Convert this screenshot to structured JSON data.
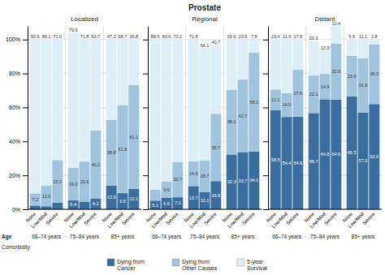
{
  "title": "Prostate",
  "chart_data": [
    {
      "type": "bar",
      "title": "Localized",
      "stacked": true,
      "data_labels": true,
      "grid": true,
      "categories": [
        "None",
        "Low/Mod",
        "Severe",
        "None",
        "Low/Mod",
        "Severe",
        "None",
        "Low/Mod",
        "Severe"
      ],
      "groups": [
        "66–74 years",
        "75–84 years",
        "85+ years"
      ],
      "annotations": [
        "Age",
        "Comorbidity"
      ],
      "ylim": [
        0,
        108
      ],
      "yticks": [
        {
          "value": 0,
          "label": "0%"
        },
        {
          "value": 20,
          "label": "20%"
        },
        {
          "value": 40,
          "label": "40%"
        },
        {
          "value": 60,
          "label": "60%"
        },
        {
          "value": 80,
          "label": "80%"
        },
        {
          "value": 100,
          "label": "100%"
        }
      ],
      "series": [
        {
          "name": "Dying from\nCancer",
          "color": "#3a6e9f",
          "values": [
            2.2,
            1.8,
            3.8,
            5.4,
            4.5,
            6.2,
            13.9,
            9.5,
            12.1
          ],
          "value_labels": [
            null,
            null,
            null,
            "5.4",
            null,
            "6.2",
            "13.9",
            "9.5",
            "12.1"
          ]
        },
        {
          "name": "Dying from\nOther Causes",
          "color": "#a0c4de",
          "values": [
            7.2,
            12.0,
            25.2,
            19.0,
            23.6,
            40.2,
            38.8,
            51.8,
            61.1
          ],
          "value_labels": [
            "7.2",
            "12.0",
            "25.2",
            "19.0",
            "23.6",
            "40.2",
            "38.8",
            "51.8",
            "61.1"
          ]
        },
        {
          "name": "5-year\nSurvival",
          "color": "#ddeef7",
          "values": [
            90.5,
            86.1,
            71.0,
            79.6,
            71.8,
            53.7,
            47.3,
            38.7,
            26.8
          ],
          "value_labels": [
            "90.5",
            "86.1",
            "71.0",
            "79.6",
            "71.8",
            "53.7",
            "47.3",
            "38.7",
            "26.8"
          ]
        }
      ]
    },
    {
      "type": "bar",
      "title": "Regional",
      "stacked": true,
      "data_labels": true,
      "grid": true,
      "tick_labels": "x",
      "categories": [
        "None",
        "Low/Mod",
        "Severe",
        "None",
        "Low/Mod",
        "Severe",
        "None",
        "Low/Mod",
        "Severe"
      ],
      "groups": [
        "66–74 years",
        "75–84 years",
        "85+ years"
      ],
      "ylim": [
        0,
        108
      ],
      "yticks": [
        0,
        20,
        40,
        60,
        80,
        100
      ],
      "series": [
        {
          "color": "#3a6e9f",
          "values": [
            5.1,
            6.9,
            7.1,
            13.7,
            10.1,
            16.6,
            32.3,
            33.7,
            34.1
          ],
          "value_labels": [
            "5.1",
            "6.9",
            "7.1",
            "13.7",
            "10.1",
            "16.6",
            "32.3",
            "33.7",
            "34.1"
          ]
        },
        {
          "color": "#a0c4de",
          "values": [
            6.4,
            9.5,
            20.7,
            14.5,
            18.7,
            39.7,
            38.1,
            42.7,
            58.1
          ],
          "value_labels": [
            null,
            "9.5",
            "20.7",
            "14.5",
            "18.7",
            "39.7",
            "38.1",
            "42.7",
            "58.1"
          ]
        },
        {
          "color": "#ddeef7",
          "values": [
            88.5,
            83.6,
            72.2,
            71.8,
            66.1,
            40.7,
            29.6,
            23.6,
            7.8
          ],
          "value_labels": [
            "88.5",
            "83.6",
            "72.2",
            "71.8",
            "66.1",
            "40.7",
            "29.6",
            "23.6",
            "7.8"
          ]
        }
      ]
    },
    {
      "type": "bar",
      "title": "Distant",
      "stacked": true,
      "data_labels": true,
      "grid": true,
      "tick_labels": "x",
      "categories": [
        "None",
        "Low/Mod",
        "Severe",
        "None",
        "Low/Mod",
        "Severe",
        "None",
        "Low/Mod",
        "Severe"
      ],
      "groups": [
        "66–74 years",
        "75–84 years",
        "85+ years"
      ],
      "ylim": [
        0,
        108
      ],
      "yticks": [
        0,
        20,
        40,
        60,
        80,
        100
      ],
      "series": [
        {
          "color": "#3a6e9f",
          "values": [
            58.5,
            54.4,
            54.6,
            56.7,
            64.8,
            64.6,
            66.5,
            57.0,
            62.0
          ],
          "value_labels": [
            "58.5",
            "54.4",
            "54.6",
            "56.7",
            "64.8",
            "64.6",
            "66.5",
            "57.0",
            "62.0"
          ]
        },
        {
          "color": "#a0c4de",
          "values": [
            12.1,
            14.0,
            27.6,
            22.1,
            14.9,
            32.9,
            23.9,
            31.9,
            35.2
          ],
          "value_labels": [
            "12.1",
            "14.0",
            "27.6",
            "22.1",
            "14.9",
            "32.9",
            "23.9",
            "31.9",
            "35.2"
          ]
        },
        {
          "color": "#ddeef7",
          "values": [
            29.4,
            31.6,
            17.8,
            20.3,
            13.9,
            10.4,
            9.6,
            11.1,
            2.8
          ],
          "value_labels": [
            "29.4",
            "31.6",
            "17.8",
            "20.3",
            "13.9",
            "10.4",
            "9.6",
            "11.1",
            "2.8"
          ]
        }
      ]
    }
  ]
}
